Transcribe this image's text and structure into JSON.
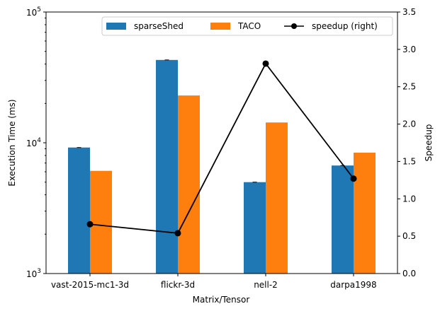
{
  "chart_data": {
    "type": "bar",
    "categories": [
      "vast-2015-mc1-3d",
      "flickr-3d",
      "nell-2",
      "darpa1998"
    ],
    "series": [
      {
        "name": "sparseShed",
        "axis": "left",
        "color": "#1f77b4",
        "values": [
          9200,
          43000,
          5000,
          6700
        ]
      },
      {
        "name": "TACO",
        "axis": "left",
        "color": "#ff7f0e",
        "values": [
          6100,
          23000,
          14300,
          8400
        ]
      }
    ],
    "line_series": {
      "name": "speedup (right)",
      "axis": "right",
      "color": "#000000",
      "marker": "circle",
      "values": [
        0.66,
        0.54,
        2.81,
        1.27
      ]
    },
    "xlabel": "Matrix/Tensor",
    "ylabel": "Execution Time (ms)",
    "ylabel_right": "Speedup",
    "yscale": "log",
    "ylim": [
      1000,
      100000
    ],
    "ylim_right": [
      0,
      3.5
    ],
    "y_tick_labels": [
      {
        "value": 1000,
        "base": "10",
        "exp": "3"
      },
      {
        "value": 10000,
        "base": "10",
        "exp": "4"
      },
      {
        "value": 100000,
        "base": "10",
        "exp": "5"
      }
    ],
    "y_right_ticks": [
      "0.0",
      "0.5",
      "1.0",
      "1.5",
      "2.0",
      "2.5",
      "3.0",
      "3.5"
    ],
    "legend": {
      "placement": "top-right",
      "entries": [
        "sparseShed",
        "TACO",
        "speedup (right)"
      ]
    },
    "grid": false
  }
}
